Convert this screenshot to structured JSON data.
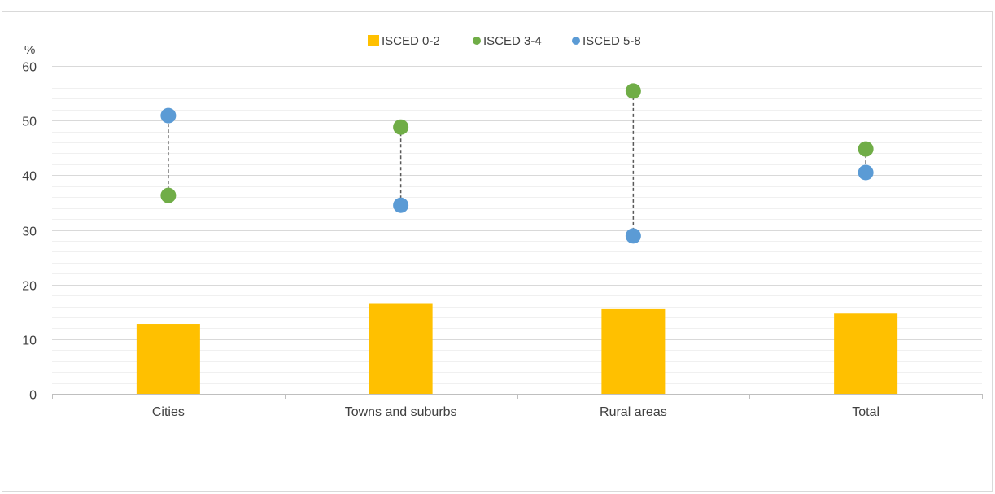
{
  "chart_data": {
    "type": "bar",
    "y_unit": "%",
    "ylim": [
      0,
      60
    ],
    "y_major_ticks": [
      0,
      10,
      20,
      30,
      40,
      50,
      60
    ],
    "y_minor_step": 2,
    "grid": true,
    "legend_position": "top",
    "categories": [
      "Cities",
      "Towns and suburbs",
      "Rural areas",
      "Total"
    ],
    "series": [
      {
        "name": "ISCED 0-2",
        "mark": "bar",
        "color": "#ffc000",
        "values": [
          12.8,
          16.6,
          15.5,
          14.7
        ]
      },
      {
        "name": "ISCED 3-4",
        "mark": "dot",
        "color": "#70ad47",
        "values": [
          36.3,
          48.8,
          55.4,
          44.8
        ]
      },
      {
        "name": "ISCED 5-8",
        "mark": "dot",
        "color": "#5b9bd5",
        "values": [
          50.9,
          34.5,
          28.9,
          40.5
        ]
      }
    ],
    "connector": {
      "style": "dashed",
      "color": "#595959",
      "between": [
        "ISCED 3-4",
        "ISCED 5-8"
      ]
    }
  }
}
